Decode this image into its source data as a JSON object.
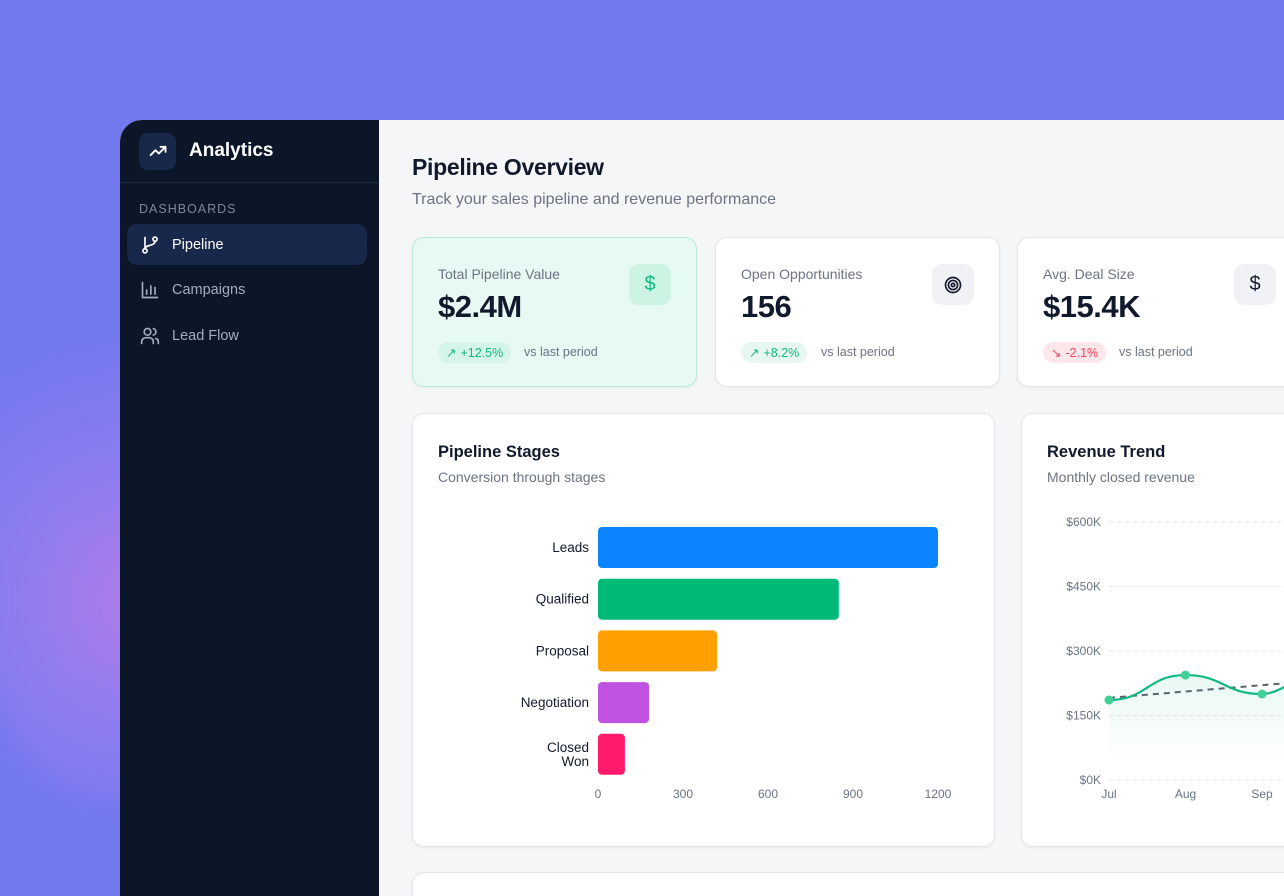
{
  "sidebar": {
    "app_name": "Analytics",
    "section_label": "DASHBOARDS",
    "items": [
      {
        "label": "Pipeline",
        "icon": "git-branch-icon",
        "active": true
      },
      {
        "label": "Campaigns",
        "icon": "bar-chart-icon",
        "active": false
      },
      {
        "label": "Lead Flow",
        "icon": "users-icon",
        "active": false
      }
    ]
  },
  "header": {
    "title": "Pipeline Overview",
    "subtitle": "Track your sales pipeline and revenue performance"
  },
  "kpis": [
    {
      "label": "Total Pipeline Value",
      "value": "$2.4M",
      "change": "+12.5%",
      "trend": "up",
      "note": "vs last period",
      "icon": "dollar-icon"
    },
    {
      "label": "Open Opportunities",
      "value": "156",
      "change": "+8.2%",
      "trend": "up",
      "note": "vs last period",
      "icon": "target-icon"
    },
    {
      "label": "Avg. Deal Size",
      "value": "$15.4K",
      "change": "-2.1%",
      "trend": "down",
      "note": "vs last period",
      "icon": "dollar-icon"
    }
  ],
  "colors": {
    "accent": "#10b981",
    "sidebar": "#0c1629",
    "background": "#7478ee",
    "negative": "#f0445a"
  },
  "chart_data": [
    {
      "type": "bar",
      "orientation": "horizontal",
      "title": "Pipeline Stages",
      "subtitle": "Conversion through stages",
      "categories": [
        "Leads",
        "Qualified",
        "Proposal",
        "Negotiation",
        "Closed Won"
      ],
      "values": [
        1200,
        850,
        420,
        180,
        95
      ],
      "colors": [
        "#0a84ff",
        "#00bb77",
        "#ff9f00",
        "#bf52e0",
        "#ff1a6d"
      ],
      "xlim": [
        0,
        1200
      ],
      "xticks": [
        "0",
        "300",
        "600",
        "900",
        "1200"
      ]
    },
    {
      "type": "line",
      "title": "Revenue Trend",
      "subtitle": "Monthly closed revenue",
      "categories": [
        "Jul",
        "Aug",
        "Sep"
      ],
      "values": [
        186000,
        244000,
        200000
      ],
      "trend_line_start": 191000,
      "ylim": [
        0,
        600000
      ],
      "yticks": [
        "$0K",
        "$150K",
        "$300K",
        "$450K",
        "$600K"
      ],
      "grid": true
    }
  ]
}
